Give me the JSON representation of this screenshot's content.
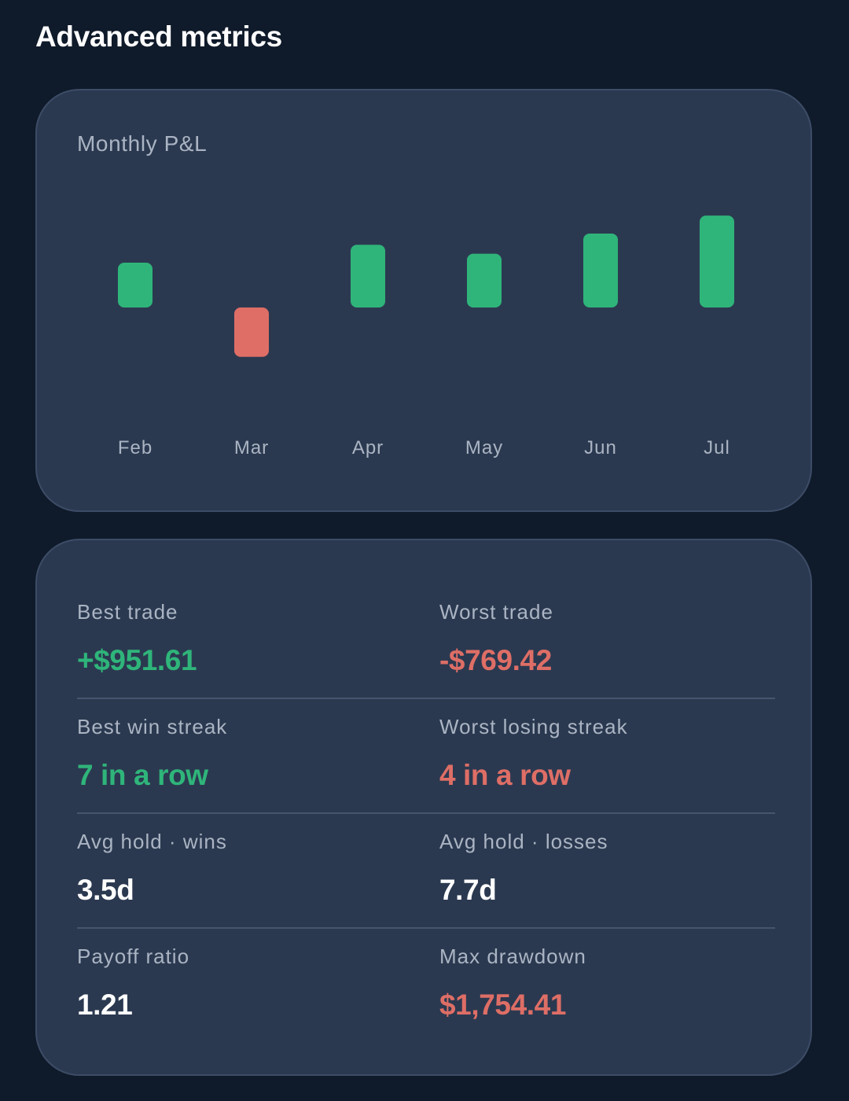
{
  "page": {
    "title": "Advanced metrics"
  },
  "colors": {
    "background": "#0f1a2a",
    "card": "#2b3950",
    "positive": "#2fb57a",
    "negative": "#de6e66",
    "label": "#aab4c3"
  },
  "chart_card": {
    "title": "Monthly P&L"
  },
  "chart_data": {
    "type": "bar",
    "title": "Monthly P&L",
    "categories": [
      "Feb",
      "Mar",
      "Apr",
      "May",
      "Jun",
      "Jul"
    ],
    "values": [
      1.0,
      -1.1,
      1.4,
      1.2,
      1.65,
      2.05
    ],
    "ylim": [
      -2.2,
      2.2
    ],
    "grid": false,
    "colors": {
      "positive": "#2fb57a",
      "negative": "#de6e66"
    }
  },
  "stats": [
    {
      "left": {
        "label": "Best trade",
        "value": "+$951.61",
        "tone": "pos"
      },
      "right": {
        "label": "Worst trade",
        "value": "-$769.42",
        "tone": "neg"
      }
    },
    {
      "left": {
        "label": "Best win streak",
        "value": "7 in a row",
        "tone": "pos"
      },
      "right": {
        "label": "Worst losing streak",
        "value": "4 in a row",
        "tone": "neg"
      }
    },
    {
      "left": {
        "label": "Avg hold · wins",
        "value": "3.5d",
        "tone": "neutral"
      },
      "right": {
        "label": "Avg hold · losses",
        "value": "7.7d",
        "tone": "neutral"
      }
    },
    {
      "left": {
        "label": "Payoff ratio",
        "value": "1.21",
        "tone": "neutral"
      },
      "right": {
        "label": "Max drawdown",
        "value": "$1,754.41",
        "tone": "neg"
      }
    }
  ]
}
